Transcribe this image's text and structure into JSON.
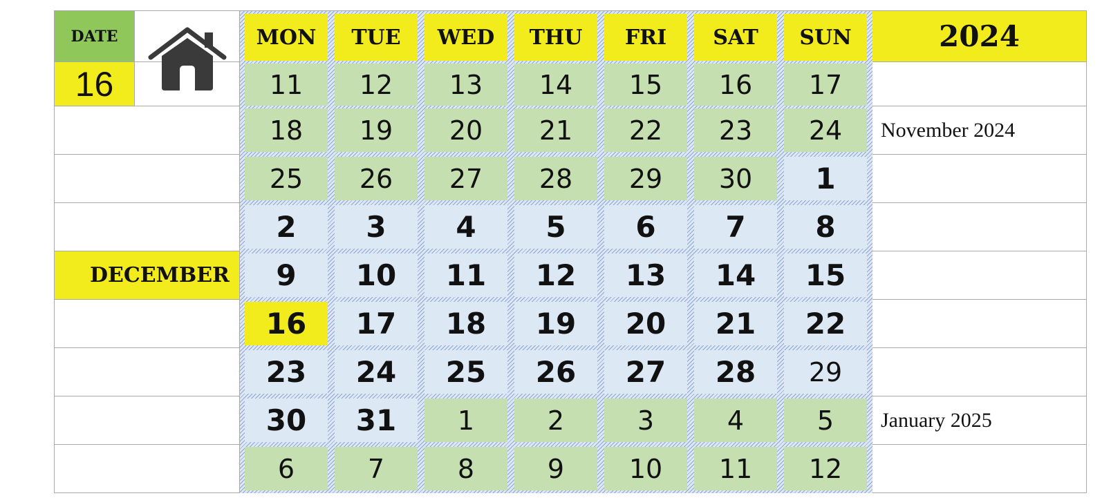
{
  "date_panel": {
    "label": "DATE",
    "value": "16"
  },
  "home_icon": "home-icon",
  "month": "DECEMBER",
  "year": "2024",
  "weekdays": [
    "MON",
    "TUE",
    "WED",
    "THU",
    "FRI",
    "SAT",
    "SUN"
  ],
  "weeks": [
    [
      {
        "d": "11",
        "t": "adj"
      },
      {
        "d": "12",
        "t": "adj"
      },
      {
        "d": "13",
        "t": "adj"
      },
      {
        "d": "14",
        "t": "adj"
      },
      {
        "d": "15",
        "t": "adj"
      },
      {
        "d": "16",
        "t": "adj"
      },
      {
        "d": "17",
        "t": "adj"
      }
    ],
    [
      {
        "d": "18",
        "t": "adj"
      },
      {
        "d": "19",
        "t": "adj"
      },
      {
        "d": "20",
        "t": "adj"
      },
      {
        "d": "21",
        "t": "adj"
      },
      {
        "d": "22",
        "t": "adj"
      },
      {
        "d": "23",
        "t": "adj"
      },
      {
        "d": "24",
        "t": "adj"
      }
    ],
    [
      {
        "d": "25",
        "t": "adj"
      },
      {
        "d": "26",
        "t": "adj"
      },
      {
        "d": "27",
        "t": "adj"
      },
      {
        "d": "28",
        "t": "adj"
      },
      {
        "d": "29",
        "t": "adj"
      },
      {
        "d": "30",
        "t": "adj"
      },
      {
        "d": "1",
        "t": "cur"
      }
    ],
    [
      {
        "d": "2",
        "t": "cur"
      },
      {
        "d": "3",
        "t": "cur"
      },
      {
        "d": "4",
        "t": "cur"
      },
      {
        "d": "5",
        "t": "cur"
      },
      {
        "d": "6",
        "t": "cur"
      },
      {
        "d": "7",
        "t": "cur"
      },
      {
        "d": "8",
        "t": "cur"
      }
    ],
    [
      {
        "d": "9",
        "t": "cur"
      },
      {
        "d": "10",
        "t": "cur"
      },
      {
        "d": "11",
        "t": "cur"
      },
      {
        "d": "12",
        "t": "cur"
      },
      {
        "d": "13",
        "t": "cur"
      },
      {
        "d": "14",
        "t": "cur"
      },
      {
        "d": "15",
        "t": "cur"
      }
    ],
    [
      {
        "d": "16",
        "t": "today"
      },
      {
        "d": "17",
        "t": "cur"
      },
      {
        "d": "18",
        "t": "cur"
      },
      {
        "d": "19",
        "t": "cur"
      },
      {
        "d": "20",
        "t": "cur"
      },
      {
        "d": "21",
        "t": "cur"
      },
      {
        "d": "22",
        "t": "cur"
      }
    ],
    [
      {
        "d": "23",
        "t": "cur"
      },
      {
        "d": "24",
        "t": "cur"
      },
      {
        "d": "25",
        "t": "cur"
      },
      {
        "d": "26",
        "t": "cur"
      },
      {
        "d": "27",
        "t": "cur"
      },
      {
        "d": "28",
        "t": "cur"
      },
      {
        "d": "29",
        "t": "plain"
      }
    ],
    [
      {
        "d": "30",
        "t": "cur"
      },
      {
        "d": "31",
        "t": "cur"
      },
      {
        "d": "1",
        "t": "adj"
      },
      {
        "d": "2",
        "t": "adj"
      },
      {
        "d": "3",
        "t": "adj"
      },
      {
        "d": "4",
        "t": "adj"
      },
      {
        "d": "5",
        "t": "adj"
      }
    ],
    [
      {
        "d": "6",
        "t": "adj"
      },
      {
        "d": "7",
        "t": "adj"
      },
      {
        "d": "8",
        "t": "adj"
      },
      {
        "d": "9",
        "t": "adj"
      },
      {
        "d": "10",
        "t": "adj"
      },
      {
        "d": "11",
        "t": "adj"
      },
      {
        "d": "12",
        "t": "adj"
      }
    ]
  ],
  "side_notes": {
    "prev_month": "November 2024",
    "next_month": "January 2025"
  },
  "colors": {
    "highlight_yellow": "#f3ec1c",
    "date_label_green": "#8fc75a",
    "adjacent_month_cell": "#c5dfb1",
    "current_month_cell": "#dde8f5",
    "calendar_pattern_blue": "#8aa6d6"
  }
}
